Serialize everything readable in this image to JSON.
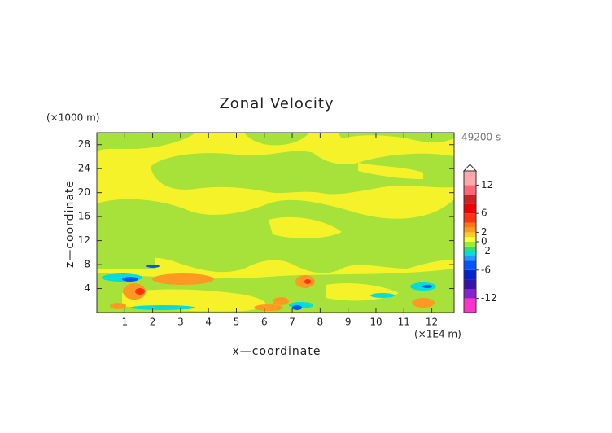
{
  "chart_data": {
    "type": "contour",
    "title": "Zonal Velocity",
    "x_label": "x—coordinate",
    "y_label": "z—coordinate",
    "x_unit": "(×1E4 m)",
    "y_unit": "(×1000 m)",
    "time_label": "49200 s",
    "xlim": [
      0,
      12.8
    ],
    "xticks": [
      1,
      2,
      3,
      4,
      5,
      6,
      7,
      8,
      9,
      10,
      11,
      12
    ],
    "ylim": [
      0,
      30
    ],
    "yticks": [
      4,
      8,
      12,
      16,
      20,
      24,
      28
    ],
    "colorbar": {
      "lim": [
        -15,
        15
      ],
      "ticks": [
        -12,
        -6,
        -2,
        0,
        2,
        6,
        12
      ],
      "bounds": [
        -15,
        -12,
        -10,
        -8,
        -6,
        -4,
        -3,
        -2,
        -1,
        0,
        1,
        2,
        3,
        4,
        6,
        8,
        10,
        12,
        15
      ],
      "colors": [
        "#ff33cc",
        "#8822cc",
        "#3311aa",
        "#0022cc",
        "#0055ff",
        "#2299ff",
        "#00dddd",
        "#33dd88",
        "#99ee33",
        "#ffff33",
        "#ffcc22",
        "#ff9922",
        "#ff7711",
        "#ff3311",
        "#ee0000",
        "#cc2222",
        "#ff6677",
        "#ffaaaa"
      ]
    }
  }
}
